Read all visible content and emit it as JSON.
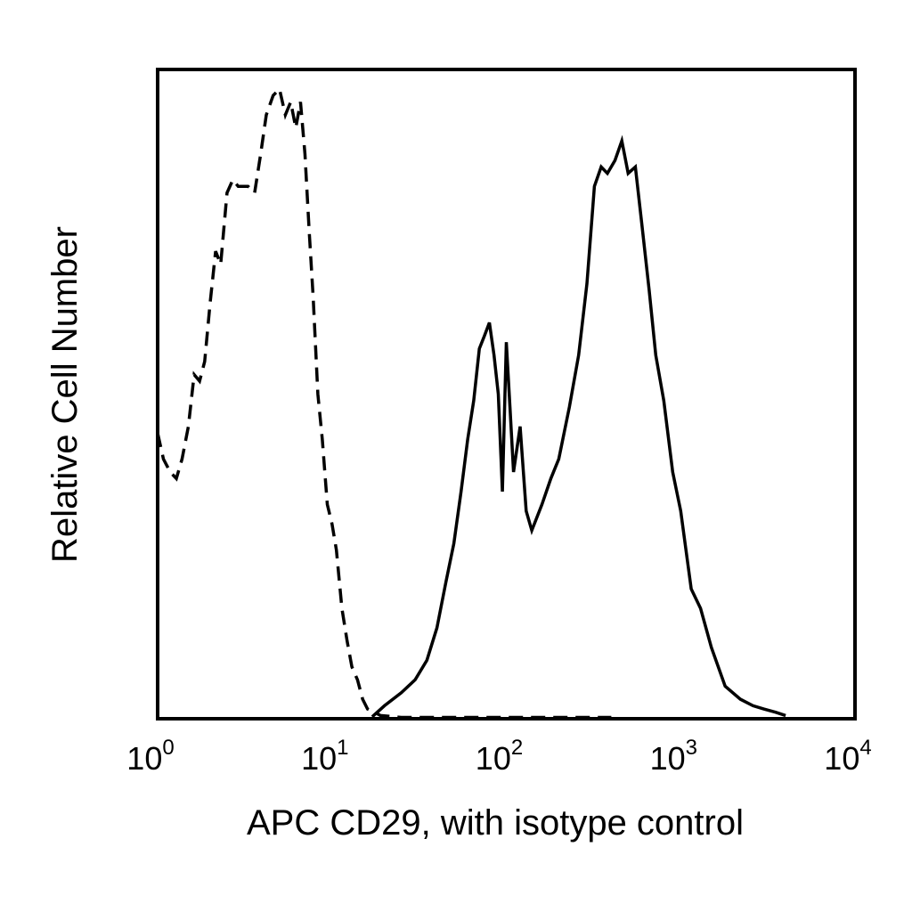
{
  "chart_data": {
    "type": "line",
    "title": "",
    "xlabel": "APC CD29, with isotype control",
    "ylabel": "Relative Cell Number",
    "x_scale": "log",
    "xlim": [
      1,
      10000
    ],
    "ylim": [
      0,
      100
    ],
    "grid": false,
    "legend": "none",
    "xticks": [
      {
        "value": 1,
        "base": "10",
        "exp": "0"
      },
      {
        "value": 10,
        "base": "10",
        "exp": "1"
      },
      {
        "value": 100,
        "base": "10",
        "exp": "2"
      },
      {
        "value": 1000,
        "base": "10",
        "exp": "3"
      },
      {
        "value": 10000,
        "base": "10",
        "exp": "4"
      }
    ],
    "series": [
      {
        "style": "dashed",
        "color": "#000000",
        "x": [
          1.0,
          1.08,
          1.18,
          1.28,
          1.38,
          1.5,
          1.62,
          1.74,
          1.86,
          2.0,
          2.15,
          2.3,
          2.5,
          2.7,
          2.9,
          3.1,
          3.3,
          3.6,
          3.9,
          4.2,
          4.6,
          5.0,
          5.4,
          5.8,
          6.2,
          6.6,
          7.0,
          7.4,
          7.8,
          8.3,
          8.8,
          9.4,
          10.0,
          10.6,
          11.4,
          12.2,
          13.0,
          14.0,
          15.0,
          16.0,
          17.5,
          19.0,
          21.0,
          25.0,
          40.0,
          100.0,
          400.0
        ],
        "y": [
          44,
          40,
          38,
          37,
          40,
          45,
          53,
          52,
          55,
          64,
          72,
          70,
          81,
          83,
          82,
          82,
          82,
          81,
          87,
          93,
          96,
          97,
          93,
          95,
          91,
          95,
          87,
          75,
          65,
          50,
          43,
          33,
          30,
          26,
          17,
          12,
          8,
          6,
          3,
          1.5,
          1,
          0.5,
          0.4,
          0.2,
          0.2,
          0.2,
          0.2
        ]
      },
      {
        "style": "solid",
        "color": "#000000",
        "x": [
          17.0,
          20.0,
          25.0,
          30.0,
          35.0,
          40.0,
          45.0,
          50.0,
          55.0,
          60.0,
          65.0,
          70.0,
          75.0,
          80.0,
          85.0,
          90.0,
          95.0,
          100.0,
          105.0,
          110.0,
          120.0,
          130.0,
          140.0,
          160.0,
          180.0,
          200.0,
          230.0,
          260.0,
          290.0,
          320.0,
          350.0,
          380.0,
          420.0,
          460.0,
          500.0,
          550.0,
          600.0,
          660.0,
          720.0,
          800.0,
          900.0,
          1000.0,
          1150.0,
          1300.0,
          1500.0,
          1800.0,
          2200.0,
          2600.0,
          3000.0,
          3500.0,
          4000.0
        ],
        "y": [
          0.3,
          2,
          4,
          6,
          9,
          14,
          21,
          27,
          35,
          43,
          49,
          57,
          59,
          61,
          56,
          50,
          35,
          58,
          48,
          38,
          45,
          32,
          29,
          33,
          37,
          40,
          48,
          56,
          67,
          82,
          85,
          84,
          86,
          89,
          84,
          85,
          76,
          66,
          56,
          49,
          38,
          32,
          20,
          17,
          11,
          5,
          3,
          2,
          1.5,
          1,
          0.5
        ]
      }
    ]
  }
}
